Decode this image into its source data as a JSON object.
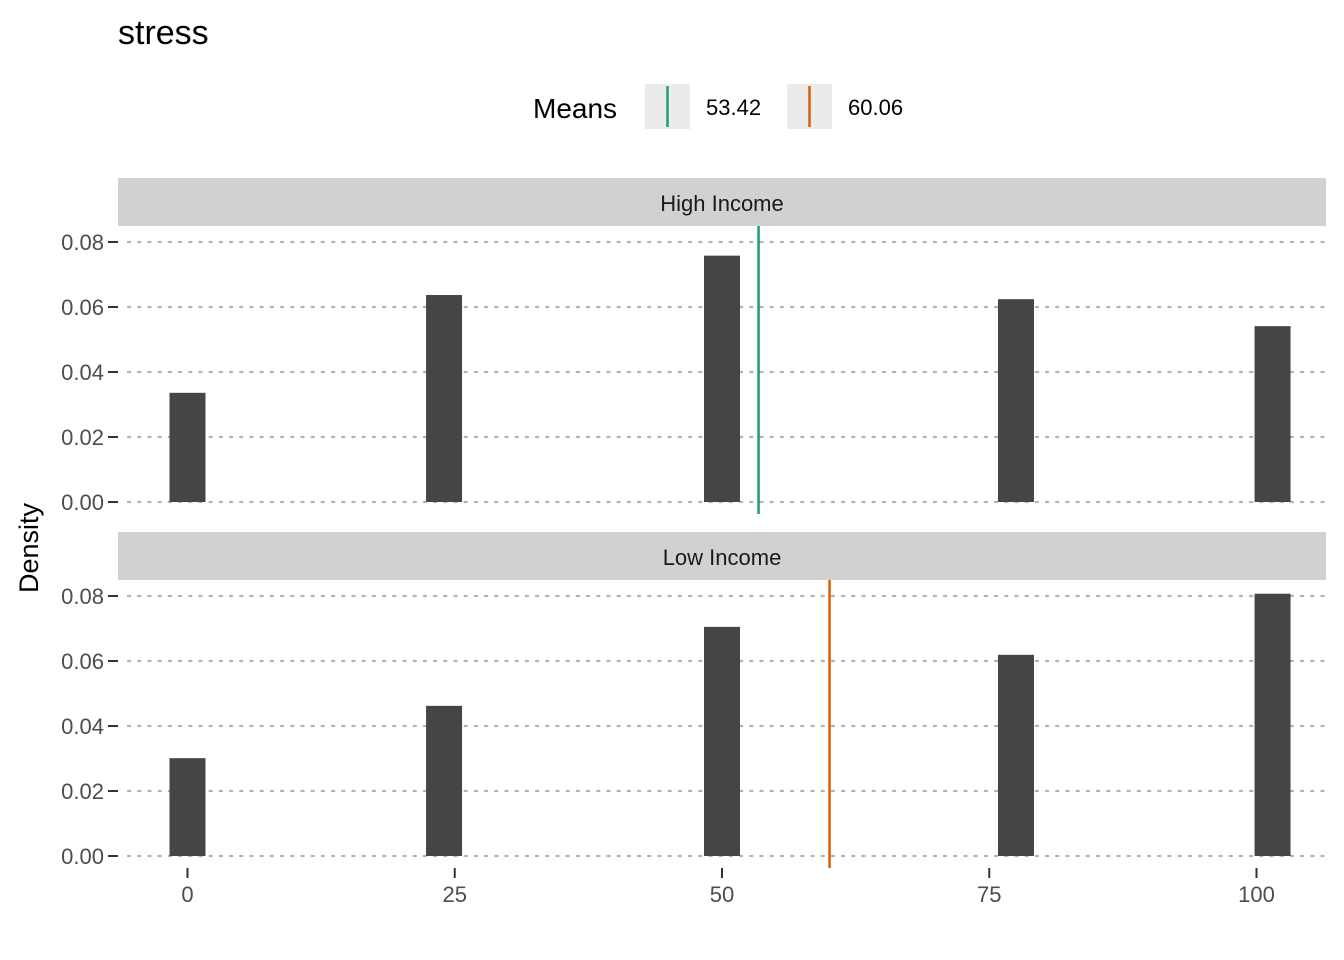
{
  "chart_data": {
    "type": "bar",
    "title": "stress",
    "xlabel": "",
    "ylabel": "Density",
    "xlim": [
      -6.5,
      106.5
    ],
    "ylim": [
      0,
      0.085
    ],
    "x_ticks": [
      0,
      25,
      50,
      75,
      100
    ],
    "y_ticks": [
      "0.00",
      "0.02",
      "0.04",
      "0.06",
      "0.08"
    ],
    "grid": "horizontal-dotted",
    "legend": {
      "title": "Means",
      "position": "top",
      "entries": [
        {
          "label": "53.42",
          "color": "#1b9e77"
        },
        {
          "label": "60.06",
          "color": "#d95f02"
        }
      ]
    },
    "bar_color": "#454545",
    "panels": [
      {
        "label": "High Income",
        "mean": 53.42,
        "mean_color": "#1b9e77",
        "x": [
          0,
          24,
          50,
          77.5,
          101.5
        ],
        "values": [
          0.0336,
          0.0637,
          0.0758,
          0.0624,
          0.0541
        ]
      },
      {
        "label": "Low Income",
        "mean": 60.06,
        "mean_color": "#d95f02",
        "x": [
          0,
          24,
          50,
          77.5,
          101.5
        ],
        "values": [
          0.0301,
          0.0462,
          0.0705,
          0.0619,
          0.0807
        ]
      }
    ]
  }
}
